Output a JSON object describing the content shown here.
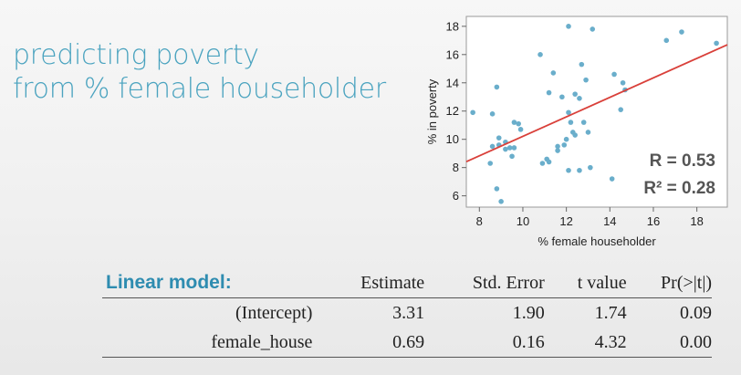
{
  "title": {
    "line1": "predicting poverty",
    "line2": "from % female householder"
  },
  "colors": {
    "title": "#4aa3bf",
    "points": "#6aaecb",
    "fit_line": "#d9403a",
    "table_label": "#2e8cb0"
  },
  "chart_data": {
    "type": "scatter",
    "xlabel": "% female householder",
    "ylabel": "% in poverty",
    "xlim": [
      7.4,
      19.4
    ],
    "ylim": [
      5.2,
      18.7
    ],
    "xticks": [
      8,
      10,
      12,
      14,
      16,
      18
    ],
    "yticks": [
      6,
      8,
      10,
      12,
      14,
      16,
      18
    ],
    "grid": false,
    "points": [
      {
        "x": 7.7,
        "y": 11.9
      },
      {
        "x": 8.5,
        "y": 8.3
      },
      {
        "x": 8.6,
        "y": 9.5
      },
      {
        "x": 8.6,
        "y": 11.8
      },
      {
        "x": 8.8,
        "y": 13.7
      },
      {
        "x": 8.9,
        "y": 9.6
      },
      {
        "x": 8.9,
        "y": 10.1
      },
      {
        "x": 8.8,
        "y": 6.5
      },
      {
        "x": 9.0,
        "y": 5.6
      },
      {
        "x": 9.2,
        "y": 9.3
      },
      {
        "x": 9.2,
        "y": 9.8
      },
      {
        "x": 9.4,
        "y": 9.4
      },
      {
        "x": 9.5,
        "y": 8.8
      },
      {
        "x": 9.6,
        "y": 9.4
      },
      {
        "x": 9.6,
        "y": 11.2
      },
      {
        "x": 9.8,
        "y": 11.1
      },
      {
        "x": 9.9,
        "y": 10.7
      },
      {
        "x": 10.8,
        "y": 16.0
      },
      {
        "x": 10.9,
        "y": 8.3
      },
      {
        "x": 11.1,
        "y": 8.6
      },
      {
        "x": 11.2,
        "y": 13.3
      },
      {
        "x": 11.2,
        "y": 8.4
      },
      {
        "x": 11.4,
        "y": 14.7
      },
      {
        "x": 11.6,
        "y": 9.5
      },
      {
        "x": 11.6,
        "y": 9.2
      },
      {
        "x": 11.8,
        "y": 13.0
      },
      {
        "x": 11.9,
        "y": 9.6
      },
      {
        "x": 12.0,
        "y": 10.0
      },
      {
        "x": 12.1,
        "y": 11.9
      },
      {
        "x": 12.1,
        "y": 7.8
      },
      {
        "x": 12.1,
        "y": 18.0
      },
      {
        "x": 12.2,
        "y": 11.2
      },
      {
        "x": 12.3,
        "y": 10.5
      },
      {
        "x": 12.4,
        "y": 10.3
      },
      {
        "x": 12.4,
        "y": 13.2
      },
      {
        "x": 12.6,
        "y": 12.9
      },
      {
        "x": 12.6,
        "y": 7.8
      },
      {
        "x": 12.7,
        "y": 15.3
      },
      {
        "x": 12.8,
        "y": 11.2
      },
      {
        "x": 12.9,
        "y": 14.2
      },
      {
        "x": 13.0,
        "y": 10.5
      },
      {
        "x": 13.1,
        "y": 8.0
      },
      {
        "x": 13.2,
        "y": 17.8
      },
      {
        "x": 14.1,
        "y": 7.2
      },
      {
        "x": 14.2,
        "y": 14.6
      },
      {
        "x": 14.5,
        "y": 12.1
      },
      {
        "x": 14.6,
        "y": 14.0
      },
      {
        "x": 14.7,
        "y": 13.5
      },
      {
        "x": 16.6,
        "y": 17.0
      },
      {
        "x": 17.3,
        "y": 17.6
      },
      {
        "x": 18.9,
        "y": 16.8
      }
    ],
    "fit_line": {
      "intercept": 3.31,
      "slope": 0.69
    },
    "annotations": [
      {
        "label": "R = 0.53"
      },
      {
        "label": "R² = 0.28"
      }
    ]
  },
  "table": {
    "label": "Linear model:",
    "columns": [
      "Estimate",
      "Std. Error",
      "t value",
      "Pr(>|t|)"
    ],
    "rows": [
      {
        "name": "(Intercept)",
        "estimate": "3.31",
        "std_error": "1.90",
        "t_value": "1.74",
        "p_value": "0.09"
      },
      {
        "name": "female_house",
        "estimate": "0.69",
        "std_error": "0.16",
        "t_value": "4.32",
        "p_value": "0.00"
      }
    ]
  }
}
